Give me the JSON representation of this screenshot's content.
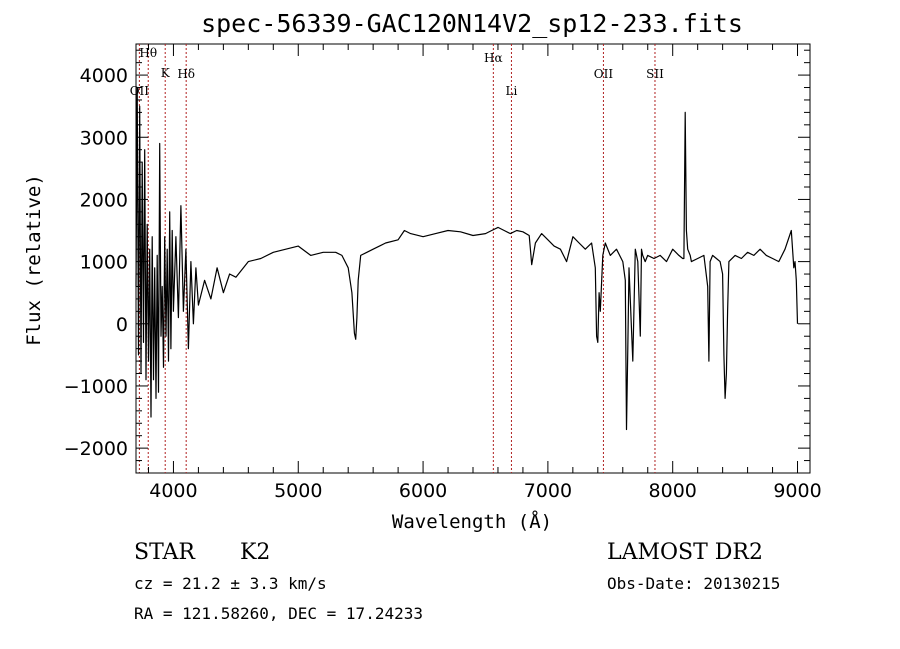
{
  "chart_data": {
    "type": "line",
    "title": "spec-56339-GAC120N14V2_sp12-233.fits",
    "xlabel": "Wavelength (Å)",
    "ylabel": "Flux (relative)",
    "xlim": [
      3700,
      9100
    ],
    "ylim": [
      -2400,
      4500
    ],
    "xticks": [
      4000,
      5000,
      6000,
      7000,
      8000,
      9000
    ],
    "yticks": [
      -2000,
      -1000,
      0,
      1000,
      2000,
      3000,
      4000
    ],
    "line_markers": [
      {
        "label": "Hθ",
        "x": 3798
      },
      {
        "label": "OII",
        "x": 3727
      },
      {
        "label": "K",
        "x": 3934
      },
      {
        "label": "Hδ",
        "x": 4102
      },
      {
        "label": "Hα",
        "x": 6563
      },
      {
        "label": "Li",
        "x": 6708
      },
      {
        "label": "OII",
        "x": 7445
      },
      {
        "label": "SII",
        "x": 7858
      }
    ],
    "series": [
      {
        "x": [
          3700,
          3710,
          3720,
          3730,
          3740,
          3750,
          3760,
          3770,
          3780,
          3790,
          3800,
          3810,
          3820,
          3830,
          3840,
          3850,
          3860,
          3870,
          3880,
          3890,
          3900,
          3910,
          3920,
          3930,
          3940,
          3950,
          3960,
          3970,
          3980,
          3990,
          4000,
          4020,
          4040,
          4060,
          4080,
          4100,
          4120,
          4140,
          4160,
          4180,
          4200,
          4250,
          4300,
          4350,
          4400,
          4450,
          4500,
          4600,
          4700,
          4800,
          4900,
          5000,
          5100,
          5200,
          5300,
          5350,
          5400,
          5430,
          5450,
          5460,
          5470,
          5480,
          5500,
          5550,
          5600,
          5700,
          5800,
          5850,
          5900,
          6000,
          6100,
          6200,
          6300,
          6400,
          6500,
          6550,
          6600,
          6650,
          6700,
          6750,
          6800,
          6850,
          6860,
          6870,
          6900,
          6950,
          7000,
          7050,
          7100,
          7150,
          7200,
          7250,
          7300,
          7350,
          7380,
          7390,
          7400,
          7410,
          7420,
          7440,
          7460,
          7500,
          7550,
          7600,
          7620,
          7630,
          7640,
          7650,
          7680,
          7700,
          7720,
          7740,
          7750,
          7760,
          7780,
          7800,
          7850,
          7900,
          7950,
          8000,
          8050,
          8080,
          8090,
          8100,
          8110,
          8120,
          8140,
          8150,
          8200,
          8250,
          8280,
          8290,
          8300,
          8320,
          8350,
          8380,
          8400,
          8410,
          8420,
          8430,
          8440,
          8450,
          8500,
          8550,
          8600,
          8650,
          8700,
          8750,
          8800,
          8850,
          8900,
          8950,
          8970,
          8980,
          8990,
          9000
        ],
        "y": [
          600,
          3800,
          -500,
          3500,
          -800,
          2600,
          -300,
          2800,
          -900,
          1600,
          -600,
          1200,
          -1500,
          1400,
          -900,
          900,
          -1200,
          1100,
          -1100,
          2900,
          -200,
          600,
          -700,
          1400,
          -200,
          1200,
          -600,
          1800,
          -400,
          1500,
          200,
          1400,
          100,
          1900,
          200,
          1200,
          -400,
          1000,
          0,
          900,
          300,
          700,
          400,
          900,
          500,
          800,
          750,
          1000,
          1050,
          1150,
          1200,
          1250,
          1100,
          1150,
          1150,
          1100,
          900,
          500,
          -150,
          -250,
          100,
          700,
          1100,
          1150,
          1200,
          1300,
          1350,
          1500,
          1450,
          1400,
          1450,
          1500,
          1480,
          1420,
          1450,
          1500,
          1550,
          1500,
          1450,
          1500,
          1480,
          1420,
          1200,
          950,
          1300,
          1450,
          1350,
          1250,
          1200,
          1000,
          1400,
          1300,
          1200,
          1300,
          900,
          -200,
          -300,
          500,
          200,
          1100,
          1300,
          1100,
          1200,
          1000,
          700,
          -1700,
          -400,
          900,
          -600,
          1200,
          1000,
          -200,
          1200,
          1100,
          1000,
          1100,
          1050,
          1100,
          1000,
          1200,
          1100,
          1050,
          1050,
          3400,
          1500,
          1200,
          1100,
          1000,
          1050,
          1100,
          600,
          -600,
          1000,
          1100,
          1050,
          1000,
          800,
          -500,
          -1200,
          -800,
          200,
          1000,
          1100,
          1050,
          1150,
          1100,
          1200,
          1100,
          1050,
          1000,
          1200,
          1500,
          900,
          1000,
          700,
          0
        ]
      }
    ]
  },
  "info": {
    "class_label": "STAR",
    "subclass_label": "K2",
    "redshift_line": "cz = 21.2 ± 3.3 km/s",
    "coords_line": "RA = 121.58260, DEC =  17.24233",
    "survey_label": "LAMOST DR2",
    "obs_date_line": "Obs-Date: 20130215"
  }
}
